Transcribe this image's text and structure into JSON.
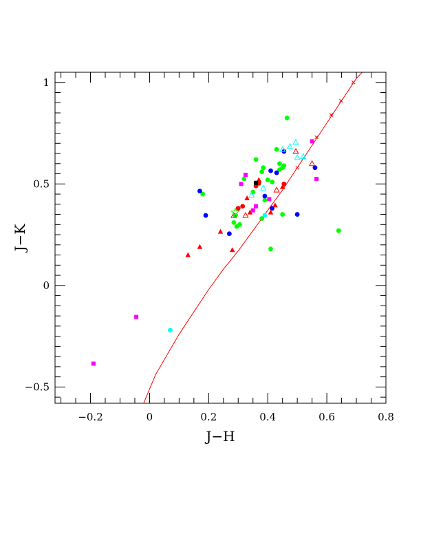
{
  "chart_data": {
    "type": "scatter",
    "xlabel": "J−H",
    "ylabel": "J−K",
    "xlim": [
      -0.32,
      0.8
    ],
    "ylim": [
      -0.58,
      1.05
    ],
    "x_ticks": [
      {
        "value": -0.2,
        "label": "−0.2"
      },
      {
        "value": 0,
        "label": "0"
      },
      {
        "value": 0.2,
        "label": "0.2"
      },
      {
        "value": 0.4,
        "label": "0.4"
      },
      {
        "value": 0.6,
        "label": "0.6"
      },
      {
        "value": 0.8,
        "label": "0.8"
      }
    ],
    "y_ticks": [
      {
        "value": -0.5,
        "label": "−0.5"
      },
      {
        "value": 0,
        "label": "0"
      },
      {
        "value": 0.5,
        "label": "0.5"
      },
      {
        "value": 1,
        "label": "1"
      }
    ],
    "grid": false,
    "legend": "none",
    "curve": {
      "color": "#ff0000",
      "points": [
        [
          -0.02,
          -0.58
        ],
        [
          0.02,
          -0.44
        ],
        [
          0.06,
          -0.34
        ],
        [
          0.1,
          -0.24
        ],
        [
          0.15,
          -0.13
        ],
        [
          0.2,
          -0.02
        ],
        [
          0.25,
          0.08
        ],
        [
          0.3,
          0.17
        ],
        [
          0.35,
          0.27
        ],
        [
          0.4,
          0.37
        ],
        [
          0.45,
          0.47
        ],
        [
          0.5,
          0.58
        ],
        [
          0.55,
          0.69
        ],
        [
          0.6,
          0.8
        ],
        [
          0.65,
          0.91
        ],
        [
          0.7,
          1.02
        ],
        [
          0.72,
          1.05
        ]
      ],
      "marker_points": [
        [
          0.5,
          0.58
        ],
        [
          0.565,
          0.73
        ],
        [
          0.615,
          0.84
        ],
        [
          0.648,
          0.91
        ],
        [
          0.69,
          1.0
        ]
      ]
    },
    "series": [
      {
        "marker": "circle",
        "color": "#00ff00",
        "points": [
          [
            0.18,
            0.45
          ],
          [
            0.285,
            0.31
          ],
          [
            0.295,
            0.29
          ],
          [
            0.305,
            0.3
          ],
          [
            0.29,
            0.345
          ],
          [
            0.32,
            0.525
          ],
          [
            0.36,
            0.62
          ],
          [
            0.38,
            0.56
          ],
          [
            0.385,
            0.58
          ],
          [
            0.37,
            0.5
          ],
          [
            0.39,
            0.42
          ],
          [
            0.4,
            0.52
          ],
          [
            0.415,
            0.51
          ],
          [
            0.43,
            0.67
          ],
          [
            0.44,
            0.6
          ],
          [
            0.45,
            0.58
          ],
          [
            0.465,
            0.825
          ],
          [
            0.38,
            0.33
          ],
          [
            0.45,
            0.35
          ],
          [
            0.41,
            0.18
          ],
          [
            0.64,
            0.27
          ],
          [
            0.35,
            0.46
          ],
          [
            0.36,
            0.505
          ],
          [
            0.44,
            0.57
          ],
          [
            0.455,
            0.59
          ]
        ]
      },
      {
        "marker": "circle",
        "color": "#0000ff",
        "points": [
          [
            0.17,
            0.465
          ],
          [
            0.19,
            0.345
          ],
          [
            0.27,
            0.255
          ],
          [
            0.39,
            0.44
          ],
          [
            0.41,
            0.565
          ],
          [
            0.43,
            0.555
          ],
          [
            0.455,
            0.66
          ],
          [
            0.5,
            0.35
          ],
          [
            0.56,
            0.58
          ],
          [
            0.415,
            0.38
          ]
        ]
      },
      {
        "marker": "circle",
        "color": "#ff0000",
        "points": [
          [
            0.3,
            0.38
          ],
          [
            0.315,
            0.39
          ],
          [
            0.36,
            0.49
          ],
          [
            0.37,
            0.505
          ],
          [
            0.455,
            0.5
          ]
        ]
      },
      {
        "marker": "circle",
        "color": "#00ffff",
        "points": [
          [
            0.07,
            -0.22
          ],
          [
            0.39,
            0.345
          ]
        ]
      },
      {
        "marker": "triangle-filled",
        "color": "#ff0000",
        "points": [
          [
            0.13,
            0.15
          ],
          [
            0.17,
            0.19
          ],
          [
            0.24,
            0.265
          ],
          [
            0.28,
            0.175
          ],
          [
            0.33,
            0.43
          ],
          [
            0.34,
            0.36
          ],
          [
            0.37,
            0.52
          ],
          [
            0.41,
            0.36
          ],
          [
            0.425,
            0.395
          ],
          [
            0.45,
            0.485
          ]
        ]
      },
      {
        "marker": "triangle-open",
        "color": "#ff0000",
        "points": [
          [
            0.285,
            0.345
          ],
          [
            0.325,
            0.345
          ],
          [
            0.43,
            0.47
          ],
          [
            0.495,
            0.66
          ],
          [
            0.55,
            0.6
          ]
        ]
      },
      {
        "marker": "triangle-open",
        "color": "#00ffff",
        "points": [
          [
            0.345,
            0.445
          ],
          [
            0.385,
            0.48
          ],
          [
            0.45,
            0.67
          ],
          [
            0.475,
            0.685
          ],
          [
            0.495,
            0.705
          ],
          [
            0.5,
            0.63
          ],
          [
            0.52,
            0.635
          ]
        ]
      },
      {
        "marker": "square",
        "color": "#ff00ff",
        "points": [
          [
            -0.19,
            -0.385
          ],
          [
            -0.045,
            -0.155
          ],
          [
            0.31,
            0.5
          ],
          [
            0.325,
            0.545
          ],
          [
            0.35,
            0.37
          ],
          [
            0.36,
            0.39
          ],
          [
            0.405,
            0.425
          ],
          [
            0.55,
            0.71
          ],
          [
            0.565,
            0.525
          ]
        ]
      },
      {
        "marker": "square",
        "color": "#000000",
        "points": [
          [
            0.36,
            0.505
          ]
        ]
      },
      {
        "marker": "star-open",
        "color": "#00ff00",
        "points": [
          [
            0.29,
            0.36
          ]
        ]
      }
    ]
  }
}
